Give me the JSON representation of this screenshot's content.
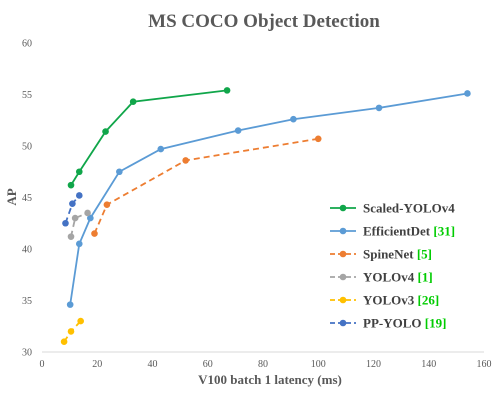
{
  "chart_data": {
    "type": "line",
    "title": "MS COCO Object Detection",
    "xlabel": "V100 batch 1 latency (ms)",
    "ylabel": "AP",
    "xlim": [
      0,
      160
    ],
    "ylim": [
      30,
      60
    ],
    "x_ticks": [
      0,
      20,
      40,
      60,
      80,
      100,
      120,
      140,
      160
    ],
    "y_ticks": [
      30,
      35,
      40,
      45,
      50,
      55,
      60
    ],
    "grid": false,
    "legend_position": "bottom-right",
    "series": [
      {
        "name": "Scaled-YOLOv4",
        "ref": "",
        "color": "#10a64a",
        "dash": "solid",
        "points": [
          [
            10.5,
            46.2
          ],
          [
            13.5,
            47.5
          ],
          [
            23,
            51.4
          ],
          [
            33,
            54.3
          ],
          [
            67,
            55.4
          ]
        ]
      },
      {
        "name": "EfficientDet",
        "ref": "[31]",
        "color": "#5b9bd5",
        "dash": "solid",
        "points": [
          [
            10.2,
            34.6
          ],
          [
            13.5,
            40.5
          ],
          [
            17.5,
            43.0
          ],
          [
            28,
            47.5
          ],
          [
            43,
            49.7
          ],
          [
            71,
            51.5
          ],
          [
            91,
            52.6
          ],
          [
            122,
            53.7
          ],
          [
            154,
            55.1
          ]
        ]
      },
      {
        "name": "SpineNet",
        "ref": "[5]",
        "color": "#ed7d31",
        "dash": "dashed",
        "points": [
          [
            19,
            41.5
          ],
          [
            23.5,
            44.3
          ],
          [
            52,
            48.6
          ],
          [
            100,
            50.7
          ]
        ]
      },
      {
        "name": "YOLOv4",
        "ref": "[1]",
        "color": "#a5a5a5",
        "dash": "dashed",
        "points": [
          [
            10.5,
            41.2
          ],
          [
            12,
            43.0
          ],
          [
            16.5,
            43.5
          ]
        ]
      },
      {
        "name": "YOLOv3",
        "ref": "[26]",
        "color": "#ffc000",
        "dash": "dashed",
        "points": [
          [
            8,
            31.0
          ],
          [
            10.5,
            32.0
          ],
          [
            14,
            33.0
          ]
        ]
      },
      {
        "name": "PP-YOLO",
        "ref": "[19]",
        "color": "#4472c4",
        "dash": "dashed",
        "points": [
          [
            8.5,
            42.5
          ],
          [
            11,
            44.4
          ],
          [
            13.5,
            45.2
          ]
        ]
      }
    ],
    "ref_color": "#00cc00"
  }
}
